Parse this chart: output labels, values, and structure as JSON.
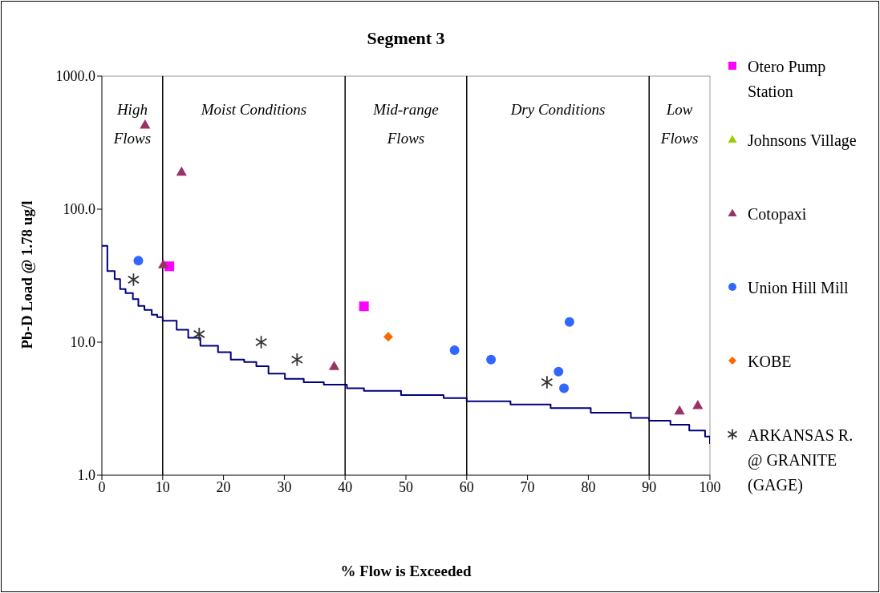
{
  "chart_data": {
    "type": "scatter",
    "title": "Segment 3",
    "xlabel": "% Flow is Exceeded",
    "ylabel": "Pb-D Load @ 1.78 ug/l",
    "xlim": [
      0,
      100
    ],
    "xticks": [
      0,
      10,
      20,
      30,
      40,
      50,
      60,
      70,
      80,
      90,
      100
    ],
    "ylim": [
      1,
      1000
    ],
    "yticks": [
      {
        "value": 1,
        "label": "1.0"
      },
      {
        "value": 10,
        "label": "10.0"
      },
      {
        "value": 100,
        "label": "100.0"
      },
      {
        "value": 1000,
        "label": "1000.0"
      }
    ],
    "log": "y",
    "grid": false,
    "legend": "right",
    "ref_lines": [
      {
        "axis": "x",
        "value": 10,
        "color": "#000000"
      },
      {
        "axis": "x",
        "value": 40,
        "color": "#000000"
      },
      {
        "axis": "x",
        "value": 60,
        "color": "#000000"
      },
      {
        "axis": "x",
        "value": 90,
        "color": "#000000"
      }
    ],
    "annotations": [
      "High Flows",
      "Moist Conditions",
      "Mid-range Flows",
      "Dry Conditions",
      "Low Flows"
    ],
    "series": [
      {
        "type": "step",
        "color": "#000080",
        "marker": "none",
        "x": [
          0,
          0.9,
          2.1,
          3.0,
          3.9,
          5.1,
          6.0,
          7.0,
          8.2,
          9.1,
          10,
          12.3,
          14.2,
          16.2,
          19.1,
          21.2,
          23.4,
          25.4,
          27.4,
          30.1,
          33.2,
          36.5,
          40.3,
          43.1,
          49.2,
          56.2,
          60,
          67.2,
          73.8,
          80.4,
          87,
          90,
          93.5,
          96.6,
          99.2,
          100
        ],
        "values": [
          53,
          34.2,
          29.8,
          25.1,
          23.4,
          21.1,
          18.7,
          17.5,
          16.1,
          15.4,
          14.5,
          12.4,
          10.8,
          9.4,
          8.4,
          7.4,
          7.1,
          6.6,
          5.8,
          5.3,
          5.0,
          4.8,
          4.5,
          4.3,
          4.0,
          3.8,
          3.6,
          3.4,
          3.2,
          2.95,
          2.7,
          2.57,
          2.4,
          2.17,
          1.95,
          1.72
        ]
      },
      {
        "name": "Otero Pump Station",
        "color": "#ff00ff",
        "marker": "square",
        "x": [
          11.1,
          43.1
        ],
        "values": [
          37.2,
          18.6
        ]
      },
      {
        "name": "Johnsons Village",
        "color": "#99cc00",
        "marker": "triangle"
      },
      {
        "name": "Cotopaxi",
        "color": "#993366",
        "marker": "triangle",
        "x": [
          7.1,
          13.1,
          10.1,
          38.2,
          95.0,
          98.0
        ],
        "values": [
          431,
          191,
          38.4,
          6.6,
          3.06,
          3.36
        ]
      },
      {
        "name": "Union Hill Mill",
        "color": "#3366ff",
        "marker": "circle",
        "x": [
          6.0,
          58.0,
          64.0,
          76.9,
          75.1,
          76.0
        ],
        "values": [
          41,
          8.7,
          7.4,
          14.2,
          6.0,
          4.5
        ]
      },
      {
        "name": "KOBE",
        "color": "#ff6600",
        "marker": "diamond",
        "x": [
          47.1
        ],
        "values": [
          11.0
        ]
      },
      {
        "name": "ARKANSAS R. @ GRANITE (GAGE)",
        "color": "#333333",
        "marker": "cross",
        "x": [
          5.2,
          16.0,
          26.2,
          32.1,
          73.2
        ],
        "values": [
          29.5,
          11.5,
          10.0,
          7.4,
          5.0
        ]
      }
    ]
  }
}
